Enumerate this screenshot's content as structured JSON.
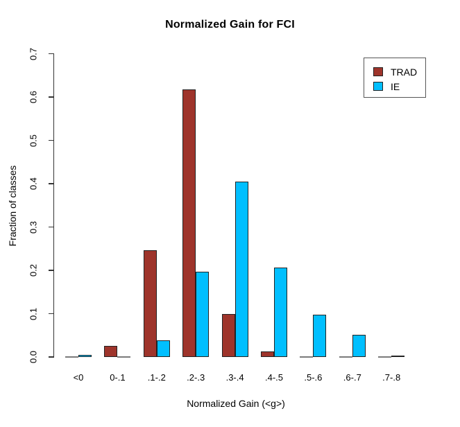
{
  "chart_data": {
    "type": "bar",
    "title": "Normalized Gain for FCI",
    "xlabel": "Normalized Gain (<g>)",
    "ylabel": "Fraction of classes",
    "categories": [
      "<0",
      "0-.1",
      ".1-.2",
      ".2-.3",
      ".3-.4",
      ".4-.5",
      ".5-.6",
      ".6-.7",
      ".7-.8"
    ],
    "series": [
      {
        "name": "TRAD",
        "color": "#9E342B",
        "values": [
          0.0,
          0.025,
          0.247,
          0.618,
          0.099,
          0.012,
          0.0,
          0.0,
          0.0
        ]
      },
      {
        "name": "IE",
        "color": "#00BFFF",
        "values": [
          0.004,
          0.0,
          0.038,
          0.196,
          0.405,
          0.207,
          0.097,
          0.051,
          0.003
        ]
      }
    ],
    "ylim": [
      0.0,
      0.7
    ],
    "yticks": [
      0.0,
      0.1,
      0.2,
      0.3,
      0.4,
      0.5,
      0.6,
      0.7
    ],
    "ytick_labels": [
      "0.0",
      "0.1",
      "0.2",
      "0.3",
      "0.4",
      "0.5",
      "0.6",
      "0.7"
    ],
    "legend_position": "top-right",
    "grid": false,
    "zero_bar_line_color": "#7a7a7a",
    "bar_border_color": "#222222",
    "axis_color": "#333333"
  }
}
